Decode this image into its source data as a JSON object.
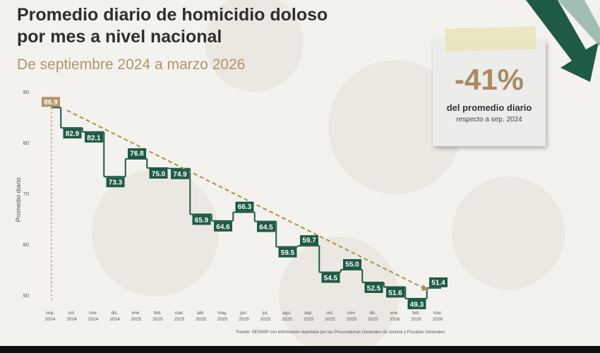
{
  "header": {
    "title_line1": "Promedio diario de homicidio doloso",
    "title_line2": "por mes a nivel nacional",
    "subtitle": "De septiembre 2024 a marzo 2026"
  },
  "callout": {
    "percent": "-41%",
    "line1": "del promedio diario",
    "line2": "respecto a sep. 2024"
  },
  "footer": {
    "source": "Fuente: SESNSP con información reportada por las Procuradurías Generales de Justicia y Fiscalías Generales."
  },
  "colors": {
    "bar": "#1f5a45",
    "first": "#b1946b",
    "trend": "#b08d57"
  },
  "chart_data": {
    "type": "line",
    "ylabel": "Promedio diario",
    "ylim": [
      50,
      90
    ],
    "yticks": [
      50,
      60,
      70,
      80,
      90
    ],
    "categories": [
      [
        "sep.",
        "2024"
      ],
      [
        "oct.",
        "2024"
      ],
      [
        "nov.",
        "2024"
      ],
      [
        "dic.",
        "2024"
      ],
      [
        "ene.",
        "2025"
      ],
      [
        "feb.",
        "2025"
      ],
      [
        "mar.",
        "2025"
      ],
      [
        "abr.",
        "2025"
      ],
      [
        "may.",
        "2025"
      ],
      [
        "jun.",
        "2025"
      ],
      [
        "jul.",
        "2025"
      ],
      [
        "ago.",
        "2025"
      ],
      [
        "sep.",
        "2025"
      ],
      [
        "oct.",
        "2025"
      ],
      [
        "nov.",
        "2025"
      ],
      [
        "dic.",
        "2025"
      ],
      [
        "ene.",
        "2026"
      ],
      [
        "feb.",
        "2026"
      ],
      [
        "mar.",
        "2026"
      ]
    ],
    "values": [
      86.9,
      82.9,
      82.1,
      73.3,
      76.8,
      75.0,
      74.9,
      65.9,
      64.6,
      66.3,
      64.5,
      59.5,
      59.7,
      54.5,
      55.0,
      52.5,
      51.6,
      49.3,
      51.4
    ],
    "labels": [
      "86.9",
      "82.9",
      "82.1",
      "73.3",
      "76.8",
      "75.0",
      "74.9",
      "65.9",
      "64.6",
      "66.3",
      "64.5",
      "59.5",
      "59.7",
      "54.5",
      "55.0",
      "52.5",
      "51.6",
      "49.3",
      "51.4"
    ],
    "grid": false,
    "legend": "none"
  }
}
